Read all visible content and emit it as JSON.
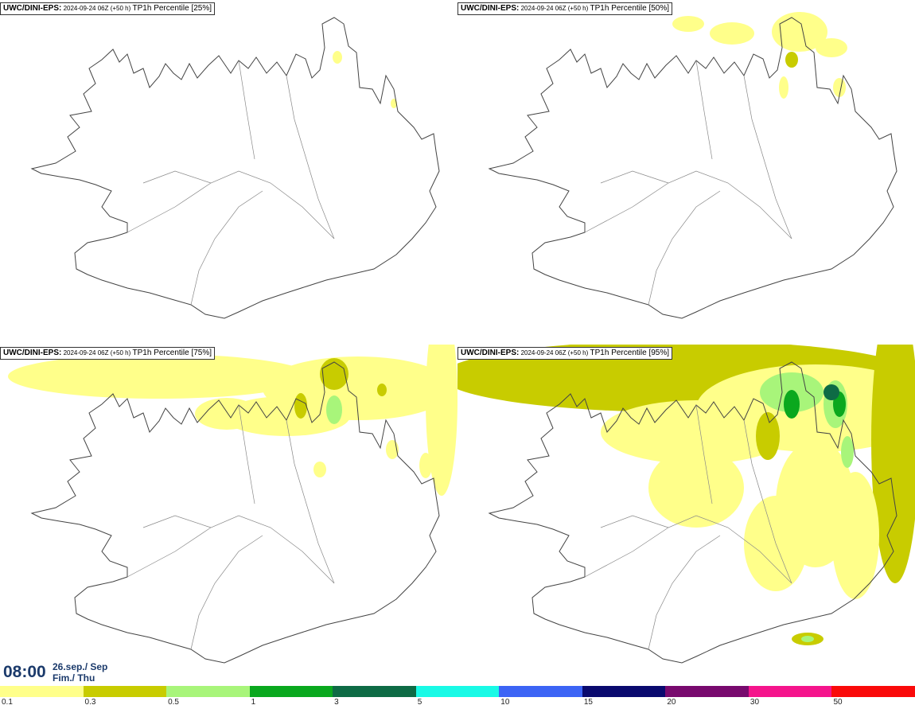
{
  "panels": [
    {
      "model": "UWC/DINI-EPS",
      "run": "2024-09-24 06Z (+50 h)",
      "field": "TP1h Percentile [25%]",
      "level": 0
    },
    {
      "model": "UWC/DINI-EPS",
      "run": "2024-09-24 06Z (+50 h)",
      "field": "TP1h Percentile [50%]",
      "level": 1
    },
    {
      "model": "UWC/DINI-EPS",
      "run": "2024-09-24 06Z (+50 h)",
      "field": "TP1h Percentile [75%]",
      "level": 2
    },
    {
      "model": "UWC/DINI-EPS",
      "run": "2024-09-24 06Z (+50 h)",
      "field": "TP1h Percentile [95%]",
      "level": 3
    }
  ],
  "valid_time": {
    "time": "08:00",
    "date_line1": "26.sep./ Sep",
    "date_line2": "Fim./ Thu"
  },
  "legend": {
    "colors": [
      "#ffff8a",
      "#c8cc00",
      "#a8f57a",
      "#0aa81e",
      "#0e6b45",
      "#19fae6",
      "#3c64f5",
      "#0a0a6e",
      "#780a6e",
      "#f5148c",
      "#fa0a0a"
    ],
    "ticks": [
      "0.1",
      "0.3",
      "0.5",
      "1",
      "3",
      "5",
      "10",
      "15",
      "20",
      "30",
      "50"
    ]
  },
  "colors": {
    "coast": "#444444",
    "land": "#ffffff",
    "text": "#1b3a6b"
  }
}
